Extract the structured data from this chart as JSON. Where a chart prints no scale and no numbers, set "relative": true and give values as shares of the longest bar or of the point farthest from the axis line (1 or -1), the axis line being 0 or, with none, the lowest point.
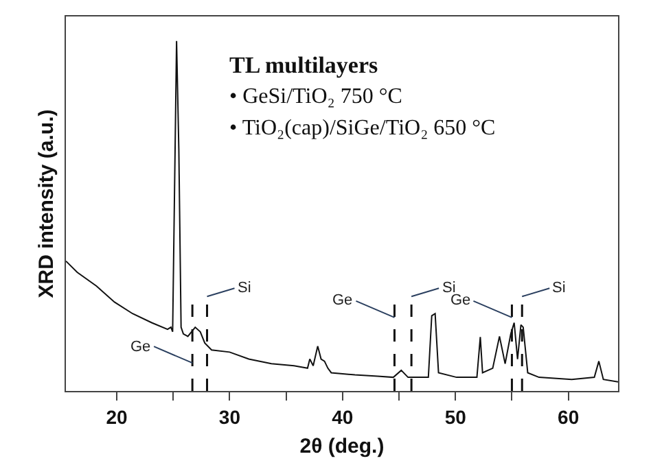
{
  "chart_data": {
    "type": "line",
    "relative": true,
    "xlabel": "2θ (deg.)",
    "ylabel": "XRD intensity (a.u.)",
    "xlim": [
      15.5,
      64.4
    ],
    "xticks": [
      20,
      {
        "value": 25,
        "label": null
      },
      30,
      {
        "value": 35,
        "label": null
      },
      40,
      {
        "value": 45,
        "label": null
      },
      50,
      {
        "value": 55,
        "label": null
      },
      60
    ],
    "marker": "none",
    "line_style": "solid",
    "series": [
      {
        "color": "#111111",
        "x": [
          15.5,
          16.5,
          18.2,
          19.8,
          21.4,
          23.1,
          24.5,
          24.8,
          24.95,
          25.3,
          25.5,
          25.7,
          25.9,
          26.3,
          26.95,
          27.4,
          27.8,
          28.4,
          30,
          31.7,
          33.7,
          35.7,
          36.9,
          37.1,
          37.4,
          37.8,
          38.1,
          38.4,
          38.7,
          39.0,
          41.1,
          43.1,
          44.5,
          45.2,
          45.8,
          47.6,
          47.9,
          48.2,
          48.5,
          50.1,
          51.9,
          52.2,
          52.4,
          53.3,
          53.9,
          54.4,
          54.9,
          55.2,
          55.5,
          55.8,
          56.0,
          56.4,
          57.4,
          60.3,
          62.3,
          62.7,
          63.1,
          64.4
        ],
        "values": [
          0.371,
          0.339,
          0.3,
          0.254,
          0.221,
          0.195,
          0.176,
          0.182,
          0.169,
          1.0,
          0.69,
          0.182,
          0.163,
          0.156,
          0.182,
          0.169,
          0.137,
          0.117,
          0.111,
          0.091,
          0.078,
          0.072,
          0.065,
          0.091,
          0.072,
          0.128,
          0.091,
          0.085,
          0.065,
          0.052,
          0.046,
          0.042,
          0.039,
          0.059,
          0.039,
          0.039,
          0.215,
          0.221,
          0.052,
          0.039,
          0.039,
          0.154,
          0.052,
          0.065,
          0.156,
          0.078,
          0.163,
          0.195,
          0.091,
          0.189,
          0.182,
          0.052,
          0.039,
          0.033,
          0.039,
          0.085,
          0.033,
          0.026
        ]
      }
    ],
    "ref_lines": [
      {
        "axis": "x",
        "value": 26.7,
        "label": "Ge",
        "line_style": "dashed",
        "color": "#111111"
      },
      {
        "axis": "x",
        "value": 28.0,
        "label": "Si",
        "line_style": "dashed",
        "color": "#111111"
      },
      {
        "axis": "x",
        "value": 44.6,
        "label": "Ge",
        "line_style": "dashed",
        "color": "#111111"
      },
      {
        "axis": "x",
        "value": 46.1,
        "label": "Si",
        "line_style": "dashed",
        "color": "#111111"
      },
      {
        "axis": "x",
        "value": 55.0,
        "label": "Ge",
        "line_style": "dashed",
        "color": "#111111"
      },
      {
        "axis": "x",
        "value": 55.9,
        "label": "Si",
        "line_style": "dashed",
        "color": "#111111"
      }
    ],
    "annotations": [
      "TL multilayers",
      "• GeSi/TiO₂ 750 °C",
      "• TiO₂(cap)/SiGe/TiO₂ 650 °C"
    ]
  }
}
